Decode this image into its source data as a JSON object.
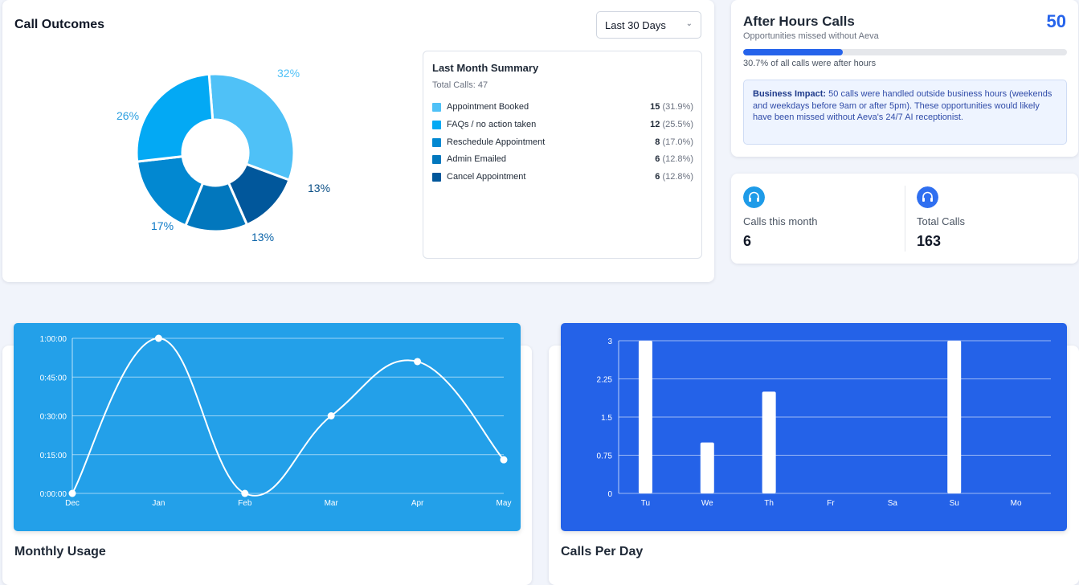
{
  "call_outcomes": {
    "title": "Call Outcomes",
    "range_select": "Last 30 Days",
    "donut_labels": [
      "32%",
      "26%",
      "17%",
      "13%",
      "13%"
    ],
    "summary": {
      "title": "Last Month Summary",
      "total": "Total Calls: 47",
      "items": [
        {
          "label": "Appointment Booked",
          "count": "15",
          "pct": "(31.9%)",
          "color": "#4fc1f7"
        },
        {
          "label": "FAQs / no action taken",
          "count": "12",
          "pct": "(25.5%)",
          "color": "#03a9f4"
        },
        {
          "label": "Reschedule Appointment",
          "count": "8",
          "pct": "(17.0%)",
          "color": "#0288d1"
        },
        {
          "label": "Admin Emailed",
          "count": "6",
          "pct": "(12.8%)",
          "color": "#0277bd"
        },
        {
          "label": "Cancel Appointment",
          "count": "6",
          "pct": "(12.8%)",
          "color": "#01579b"
        }
      ]
    }
  },
  "after_hours": {
    "title": "After Hours Calls",
    "subtitle": "Opportunities missed without Aeva",
    "value": "50",
    "progress_fraction": 0.307,
    "progress_text": "30.7% of all calls were after hours",
    "impact_label": "Business Impact:",
    "impact_text": " 50 calls were handled outside business hours (weekends and weekdays before 9am or after 5pm). These opportunities would likely have been missed without Aeva's 24/7 AI receptionist."
  },
  "stats": {
    "month": {
      "label": "Calls this month",
      "value": "6",
      "icon": "headphones-icon"
    },
    "total": {
      "label": "Total Calls",
      "value": "163",
      "icon": "headphones-icon"
    }
  },
  "monthly_usage": {
    "title": "Monthly Usage"
  },
  "calls_per_day": {
    "title": "Calls Per Day"
  },
  "colors": {
    "accent": "#2563eb",
    "usage_bg": "#23a0e9",
    "perday_bg": "#2462e8"
  },
  "chart_data": [
    {
      "type": "pie",
      "categories": [
        "Appointment Booked",
        "FAQs / no action taken",
        "Reschedule Appointment",
        "Admin Emailed",
        "Cancel Appointment"
      ],
      "values": [
        15,
        12,
        8,
        6,
        6
      ],
      "labels": [
        "32%",
        "26%",
        "17%",
        "13%",
        "13%"
      ],
      "colors": [
        "#4fc1f7",
        "#03a9f4",
        "#0288d1",
        "#0277bd",
        "#01579b"
      ]
    },
    {
      "type": "line",
      "x": [
        "Dec",
        "Jan",
        "Feb",
        "Mar",
        "Apr",
        "May"
      ],
      "values": [
        0,
        60,
        0,
        30,
        51,
        13
      ],
      "y_unit": "minutes",
      "yticks": [
        "0:00:00",
        "0:15:00",
        "0:30:00",
        "0:45:00",
        "1:00:00"
      ],
      "ylim": [
        0,
        60
      ],
      "grid": true
    },
    {
      "type": "bar",
      "categories": [
        "Tu",
        "We",
        "Th",
        "Fr",
        "Sa",
        "Su",
        "Mo"
      ],
      "values": [
        3,
        1,
        2,
        0,
        0,
        3,
        0
      ],
      "yticks": [
        "0",
        "0.75",
        "1.5",
        "2.25",
        "3"
      ],
      "ylim": [
        0,
        3
      ],
      "grid": true
    }
  ]
}
